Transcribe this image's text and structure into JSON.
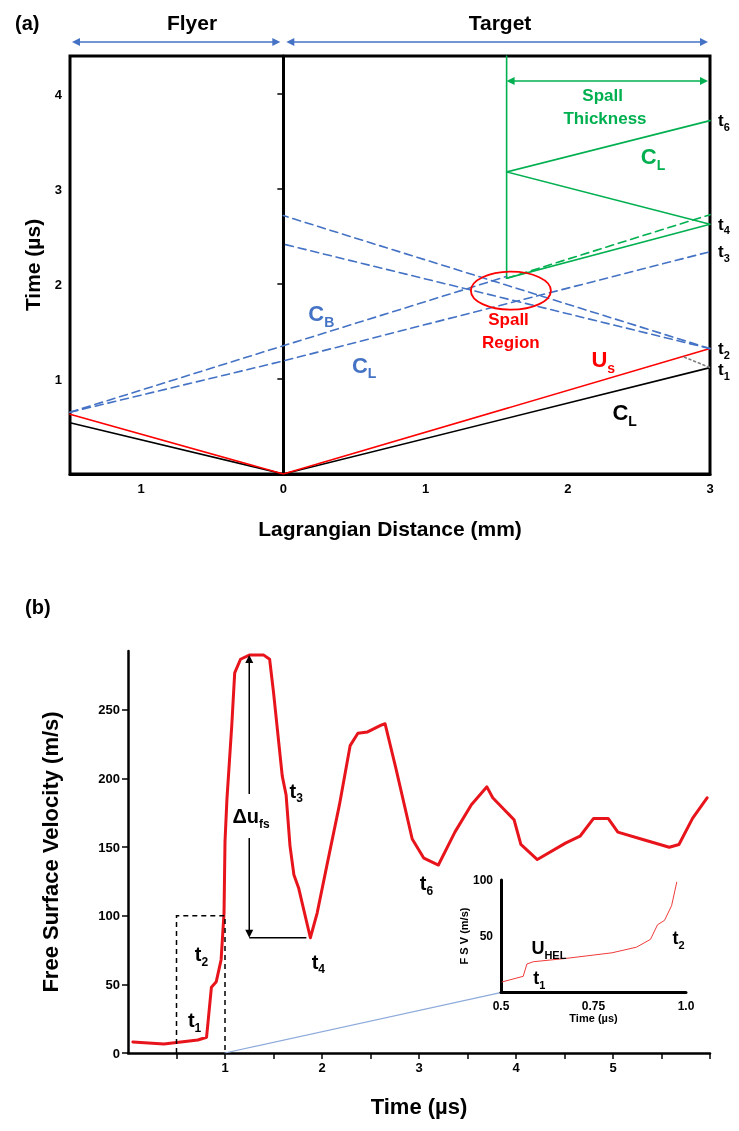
{
  "chart_data": [
    {
      "type": "line",
      "title": "(a)",
      "xlabel": "Lagrangian Distance (mm)",
      "ylabel": "Time (µs)",
      "xlim": [
        -1.5,
        3
      ],
      "xticks": [
        {
          "value": -1,
          "label": "1"
        },
        0,
        1,
        2,
        3
      ],
      "ylim": [
        0,
        4.4
      ],
      "yticks": [
        1,
        2,
        3,
        4
      ],
      "series": [
        {
          "name": "C$_{L}$",
          "color": "#000000",
          "line_style": "solid",
          "x": [
            -1.5,
            0,
            3
          ],
          "values": [
            0.54,
            0,
            1.12
          ]
        },
        {
          "name": "U$_{s}$",
          "color": "#ff0000",
          "line_style": "solid",
          "x": [
            -1.5,
            0,
            3
          ],
          "values": [
            0.63,
            0,
            1.32
          ]
        },
        {
          "name": "C$_{B}$",
          "color": "#4472c4",
          "line_style": "dashed",
          "x": [
            -1.5,
            0,
            1.57
          ],
          "values": [
            0.65,
            1.35,
            2.08
          ]
        },
        {
          "name": "C$_{L}$",
          "color": "#4472c4",
          "line_style": "dashed",
          "x": [
            -1.5,
            0,
            3
          ],
          "values": [
            0.65,
            1.19,
            2.34
          ]
        },
        {
          "color": "#4472c4",
          "line_style": "dashed",
          "x": [
            3,
            0
          ],
          "values": [
            1.32,
            2.72
          ]
        },
        {
          "color": "#4472c4",
          "line_style": "dashed",
          "x": [
            3,
            0
          ],
          "values": [
            1.32,
            2.42
          ]
        },
        {
          "color": "#00b050",
          "line_style": "solid",
          "x": [
            1.57,
            1.57
          ],
          "values": [
            2.06,
            4.4
          ]
        },
        {
          "name": "C$_{L}$",
          "color": "#00b050",
          "line_style": "solid",
          "x": [
            1.57,
            3,
            1.57,
            3
          ],
          "values": [
            2.06,
            2.63,
            3.18,
            3.72
          ]
        },
        {
          "color": "#00b050",
          "line_style": "dashed",
          "x": [
            1.57,
            3
          ],
          "values": [
            2.06,
            2.73
          ]
        },
        {
          "color": "#7f7f7f",
          "line_style": "dotted",
          "x": [
            2.82,
            3
          ],
          "values": [
            1.23,
            1.12
          ]
        }
      ],
      "annotations": [
        "Flyer",
        "Target",
        "Spall Thickness",
        {
          "text": "Spall Region",
          "x": 1.6,
          "y": 1.93
        },
        {
          "text": "t$_{6}$",
          "x": 3,
          "y": 3.72
        },
        {
          "text": "t$_{4}$",
          "x": 3,
          "y": 2.63
        },
        {
          "text": "t$_{3}$",
          "x": 3,
          "y": 2.34
        },
        {
          "text": "t$_{2}$",
          "x": 3,
          "y": 1.32
        },
        {
          "text": "t$_{1}$",
          "x": 3,
          "y": 1.12
        }
      ]
    },
    {
      "type": "line",
      "title": "(b)",
      "xlabel": "Time (µs)",
      "ylabel": "Free Surface Velocity (m/s)",
      "xlim": [
        0,
        6
      ],
      "xticks": [
        {
          "value": 0.5,
          "label": null
        },
        1,
        {
          "value": 1.5,
          "label": null
        },
        2,
        {
          "value": 2.5,
          "label": null
        },
        3,
        {
          "value": 3.5,
          "label": null
        },
        4,
        {
          "value": 4.5,
          "label": null
        },
        5,
        {
          "value": 5.5,
          "label": null
        },
        {
          "value": 6,
          "label": null
        }
      ],
      "ylim": [
        0,
        293
      ],
      "yticks": [
        0,
        50,
        100,
        150,
        200,
        250
      ],
      "series": [
        {
          "color": "#8eaadb",
          "x": [
            1,
            3.84
          ],
          "values": [
            0,
            44
          ]
        },
        {
          "color": "#e8141b",
          "x": [
            0.05,
            0.37,
            0.72,
            0.81,
            0.86,
            0.91,
            0.96,
            0.99,
            1.0,
            1.02,
            1.07,
            1.1,
            1.16,
            1.25,
            1.4,
            1.46,
            1.5,
            1.59,
            1.63,
            1.67,
            1.71,
            1.76,
            1.88,
            1.95,
            2.06,
            2.18,
            2.29,
            2.37,
            2.47,
            2.61,
            2.65,
            2.76,
            2.93,
            3.05,
            3.2,
            3.37,
            3.54,
            3.7,
            3.76,
            3.98,
            4.05,
            4.22,
            4.51,
            4.66,
            4.8,
            4.95,
            5.05,
            5.29,
            5.58,
            5.68,
            5.82,
            5.97
          ],
          "values": [
            8,
            6.5,
            9.5,
            11.5,
            48,
            52,
            68,
            102,
            154,
            185,
            239,
            277,
            287,
            290,
            290,
            287,
            263,
            202,
            188,
            151,
            130,
            120,
            84,
            102,
            140,
            181,
            224,
            233,
            234,
            239,
            240,
            208,
            156,
            142,
            137,
            161,
            181,
            194,
            186,
            170,
            152,
            141,
            153,
            158,
            171,
            171,
            161,
            156,
            150,
            152,
            171,
            186
          ]
        }
      ],
      "annotations": [
        {
          "text": "t$_{1}$",
          "x": 0.81,
          "y": 11.5
        },
        {
          "text": "t$_{2}$",
          "x": 0.86,
          "y": 48
        },
        {
          "text": "t$_{3}$",
          "x": 1.59,
          "y": 202
        },
        {
          "text": "t$_{4}$",
          "x": 1.88,
          "y": 84
        },
        {
          "text": "t$_{6}$",
          "x": 3.2,
          "y": 137
        },
        {
          "text": "Δu$_{fs}$",
          "x": 1.25,
          "y": 290
        }
      ]
    },
    {
      "type": "line",
      "xlabel": "Time (µs)",
      "ylabel": "F S V (m/s)",
      "xlim": [
        0.5,
        1.0
      ],
      "xticks": [
        0.5,
        0.75,
        {
          "value": 1,
          "label": "1.0"
        }
      ],
      "ylim": [
        0,
        100
      ],
      "yticks": [
        50,
        100
      ],
      "series": [
        {
          "color": "#f03a3a",
          "x": [
            0.503,
            0.56,
            0.57,
            0.587,
            0.676,
            0.8,
            0.866,
            0.904,
            0.923,
            0.942,
            0.961,
            0.975
          ],
          "values": [
            9,
            14,
            25,
            27,
            30,
            35,
            40,
            47,
            60,
            64,
            77,
            98
          ]
        }
      ],
      "annotations": [
        {
          "text": "U$_{HEL}$",
          "x": 0.57,
          "y": 25
        },
        {
          "text": "t$_{1}$",
          "x": 0.56,
          "y": 14
        },
        {
          "text": "t$_{2}$",
          "x": 0.942,
          "y": 64
        }
      ]
    }
  ]
}
